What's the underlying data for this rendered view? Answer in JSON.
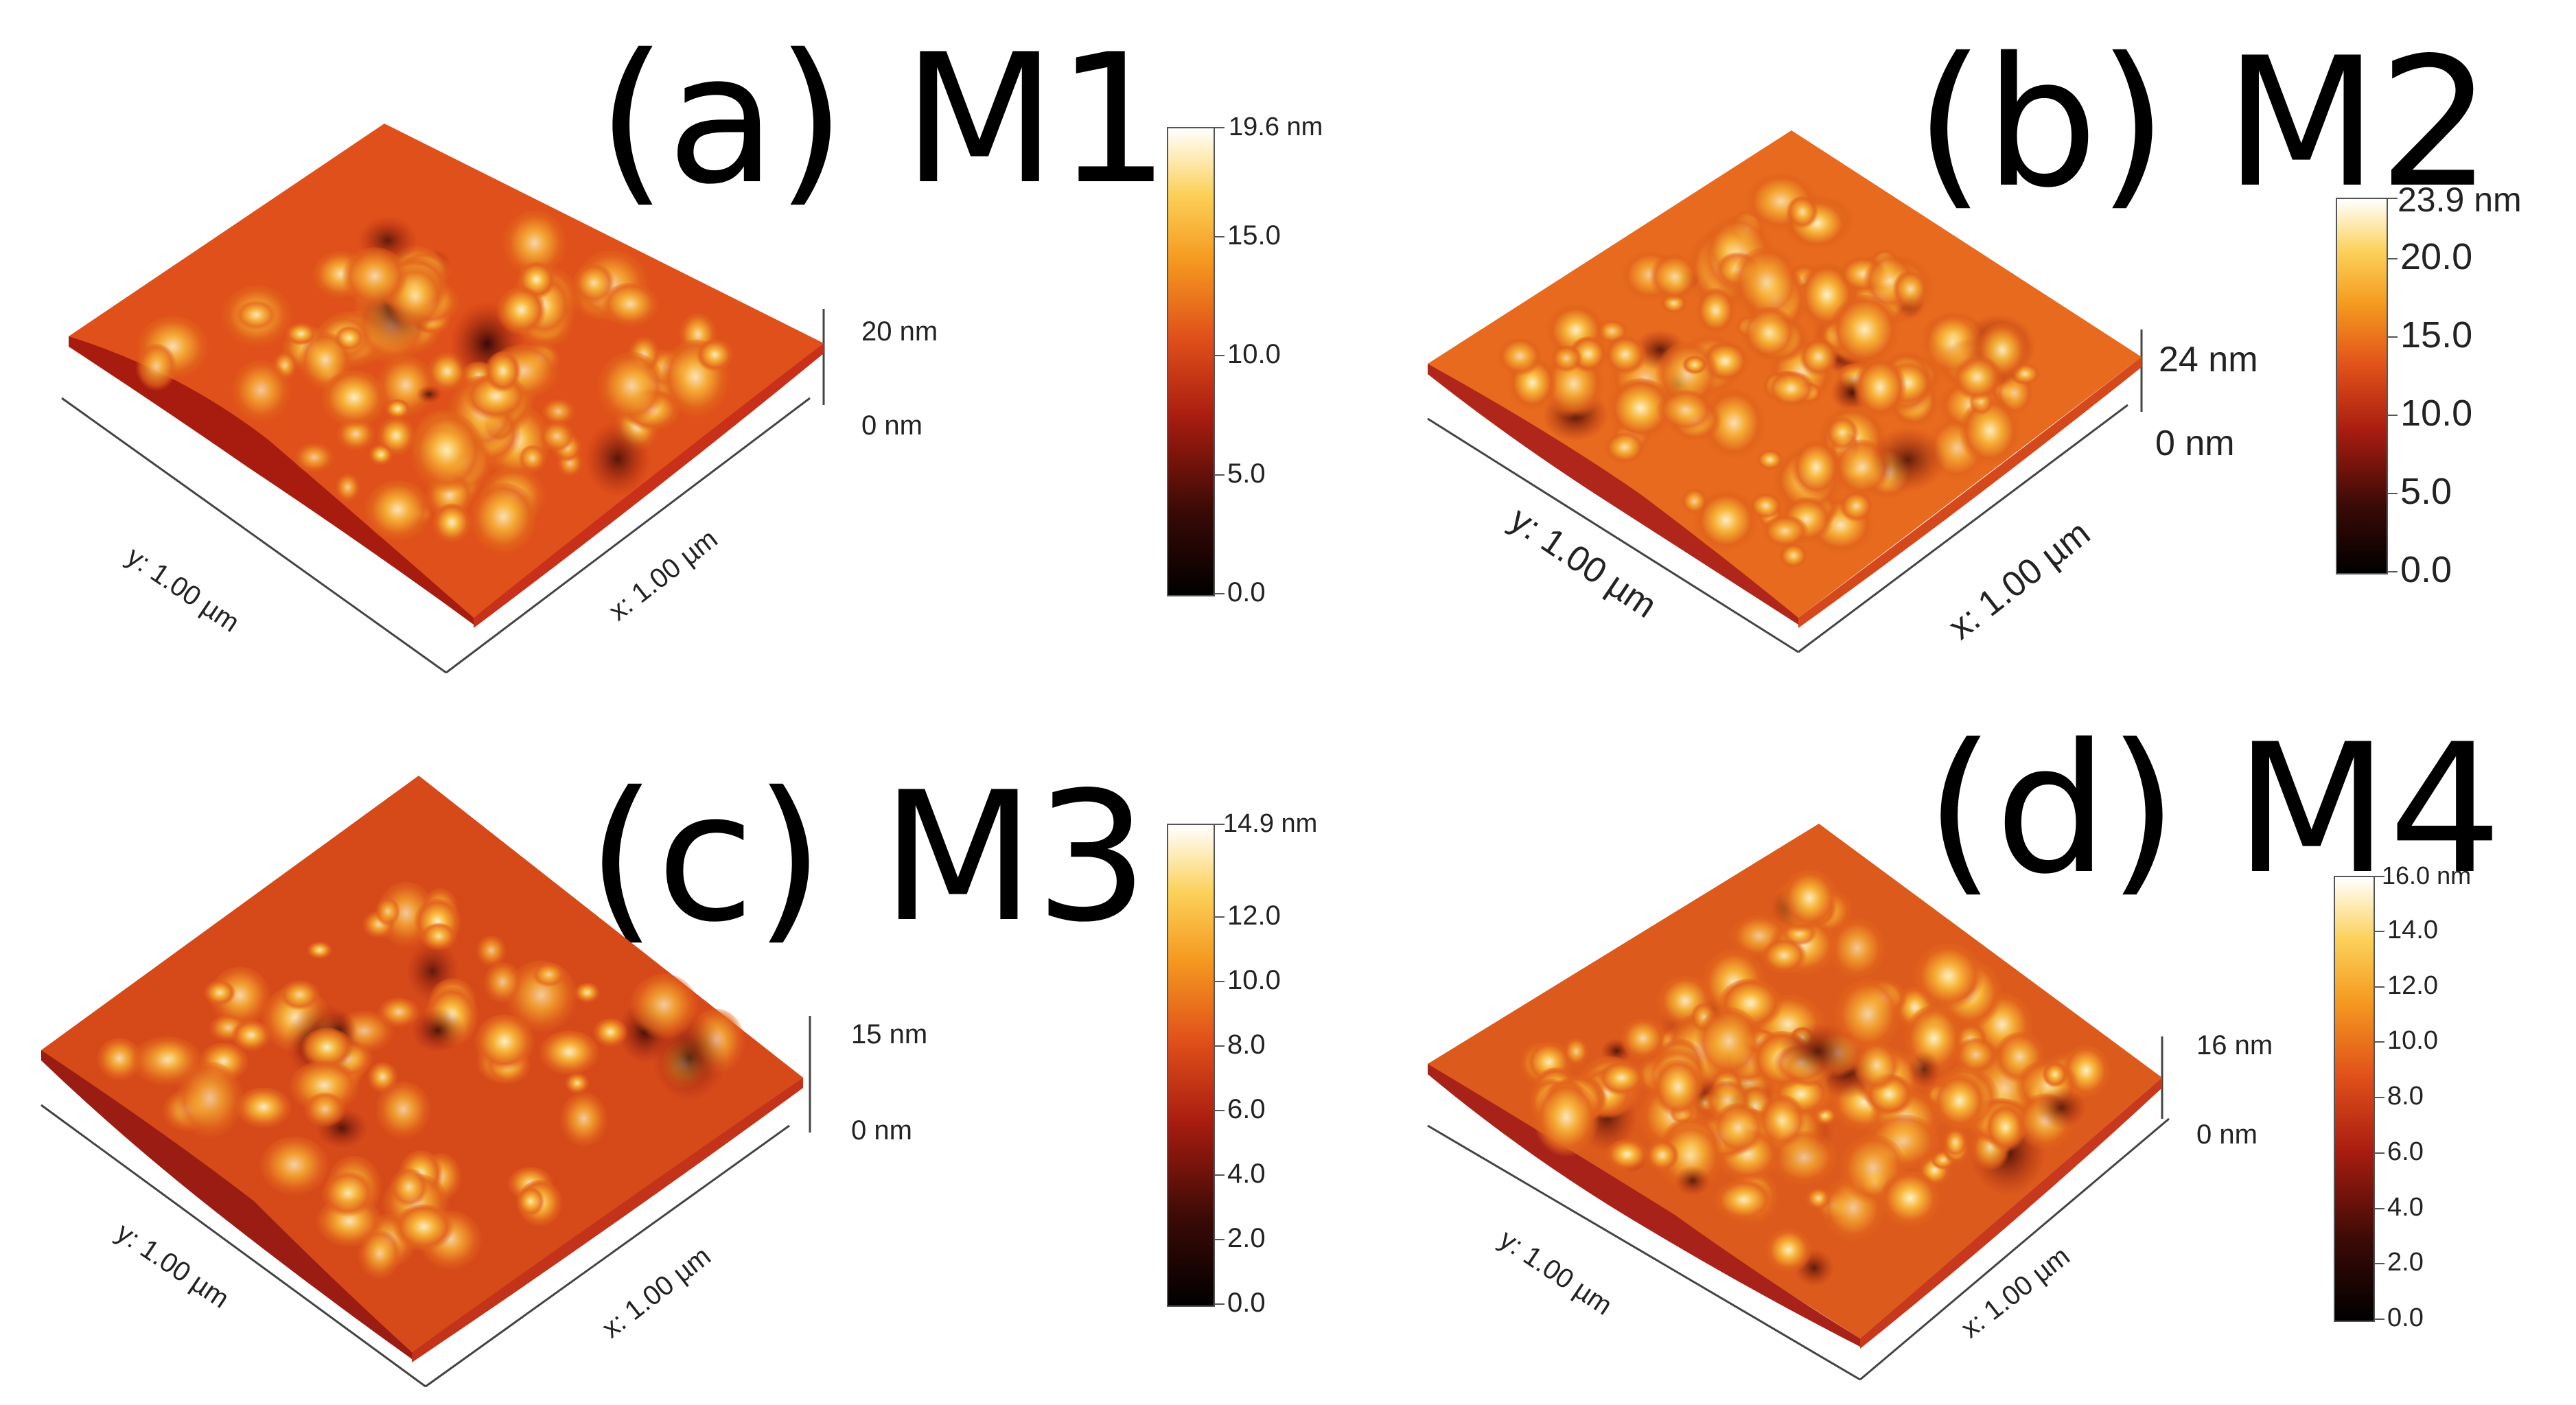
{
  "panels": [
    {
      "title": "(a) M1",
      "z_top_label": "20 nm",
      "z_bottom_label": "0 nm",
      "x_axis_label": "x: 1.00 µm",
      "y_axis_label": "y: 1.00 µm",
      "scale": {
        "max_label": "19.6 nm",
        "max_value": 19.6,
        "ticks": [
          "15.0",
          "10.0",
          "5.0",
          "0.0"
        ]
      }
    },
    {
      "title": "(b) M2",
      "z_top_label": "24 nm",
      "z_bottom_label": "0 nm",
      "x_axis_label": "x: 1.00 µm",
      "y_axis_label": "y: 1.00 µm",
      "scale": {
        "max_label": "23.9 nm",
        "max_value": 23.9,
        "ticks": [
          "20.0",
          "15.0",
          "10.0",
          "5.0",
          "0.0"
        ]
      }
    },
    {
      "title": "(c) M3",
      "z_top_label": "15 nm",
      "z_bottom_label": "0 nm",
      "x_axis_label": "x: 1.00 µm",
      "y_axis_label": "y: 1.00 µm",
      "scale": {
        "max_label": "14.9 nm",
        "max_value": 14.9,
        "ticks": [
          "12.0",
          "10.0",
          "8.0",
          "6.0",
          "4.0",
          "2.0",
          "0.0"
        ]
      }
    },
    {
      "title": "(d) M4",
      "z_top_label": "16 nm",
      "z_bottom_label": "0 nm",
      "x_axis_label": "x: 1.00 µm",
      "y_axis_label": "y: 1.00 µm",
      "scale": {
        "max_label": "16.0 nm",
        "max_value": 16.0,
        "ticks": [
          "14.0",
          "12.0",
          "10.0",
          "8.0",
          "6.0",
          "4.0",
          "2.0",
          "0.0"
        ]
      }
    }
  ]
}
